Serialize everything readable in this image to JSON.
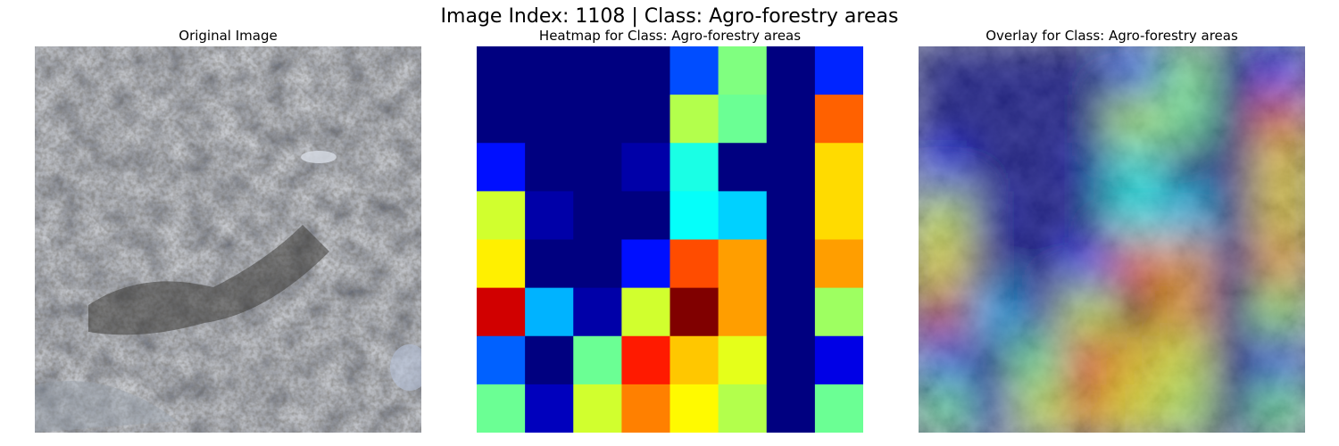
{
  "figure": {
    "title": "Image Index: 1108 | Class: Agro-forestry areas"
  },
  "panels": {
    "original": {
      "title": "Original Image"
    },
    "heatmap": {
      "title": "Heatmap for Class: Agro-forestry areas"
    },
    "overlay": {
      "title": "Overlay for Class: Agro-forestry areas"
    }
  },
  "heatmap": {
    "colormap": "jet",
    "rows": 8,
    "cols": 8,
    "values": [
      [
        0.0,
        0.0,
        0.0,
        0.0,
        0.2,
        0.5,
        0.0,
        0.16
      ],
      [
        0.0,
        0.0,
        0.0,
        0.0,
        0.55,
        0.48,
        0.0,
        0.78
      ],
      [
        0.14,
        0.0,
        0.0,
        0.04,
        0.4,
        0.0,
        0.0,
        0.66
      ],
      [
        0.58,
        0.04,
        0.0,
        0.0,
        0.38,
        0.33,
        0.0,
        0.66
      ],
      [
        0.64,
        0.0,
        0.0,
        0.14,
        0.8,
        0.72,
        0.0,
        0.72
      ],
      [
        0.92,
        0.3,
        0.04,
        0.58,
        1.0,
        0.72,
        0.0,
        0.53
      ],
      [
        0.22,
        0.0,
        0.48,
        0.85,
        0.68,
        0.6,
        0.0,
        0.1
      ],
      [
        0.48,
        0.06,
        0.58,
        0.75,
        0.63,
        0.55,
        0.0,
        0.48
      ]
    ]
  },
  "colors": {
    "background": "#ffffff",
    "terrain_base": "#6e747a",
    "terrain_dark": "#3c3a36",
    "terrain_light": "#9aa2ad",
    "overlay_tint": "#000080"
  }
}
